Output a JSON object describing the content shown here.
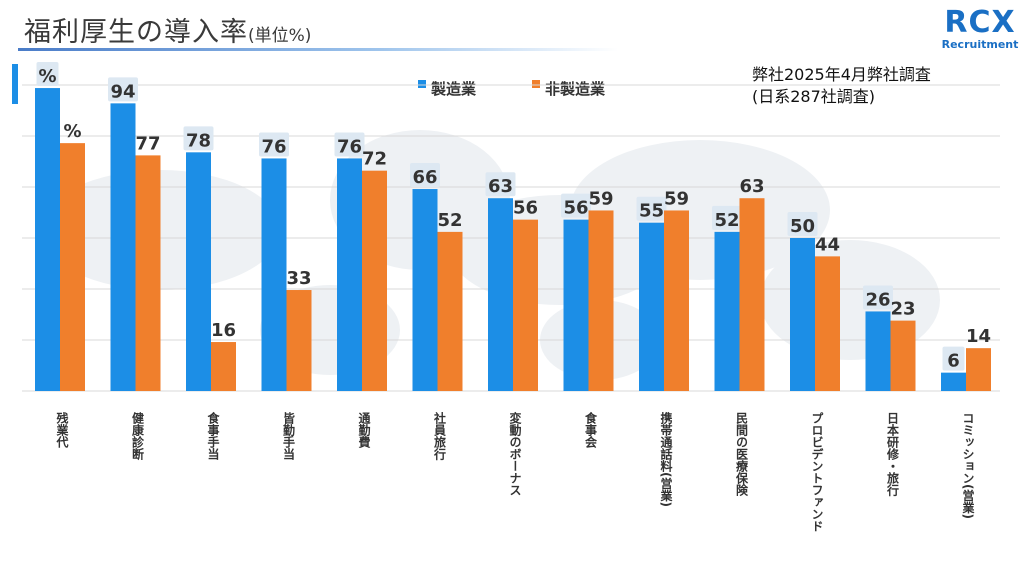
{
  "header": {
    "title": "福利厚生の導入率",
    "unit": "(単位%)"
  },
  "logo": {
    "main_prefix": "RC",
    "main_x": "X",
    "sub": "Recruitment"
  },
  "note": {
    "line1": "弊社2025年4月弊社調査",
    "line2": "(日系287社調査)"
  },
  "colors": {
    "manufacturing": "#1c8ee6",
    "non_manufacturing": "#f07f2c"
  },
  "chart_data": {
    "type": "bar",
    "categories": [
      "残業代",
      "健康診断",
      "食事手当",
      "皆勤手当",
      "通勤費",
      "社員旅行",
      "変動のボーナス",
      "食事会",
      "携帯通話料(営業)",
      "民間の医療保険",
      "プロビデントファンド",
      "日本研修・旅行",
      "コミッション(営業)"
    ],
    "series": [
      {
        "name": "製造業",
        "values": [
          99,
          94,
          78,
          76,
          76,
          66,
          63,
          56,
          55,
          52,
          50,
          26,
          6
        ],
        "labels": [
          "%",
          "94",
          "78",
          "76",
          "76",
          "66",
          "63",
          "56",
          "55",
          "52",
          "50",
          "26",
          "6"
        ]
      },
      {
        "name": "非製造業",
        "values": [
          81,
          77,
          16,
          33,
          72,
          52,
          56,
          59,
          59,
          63,
          44,
          23,
          14
        ],
        "labels": [
          "%",
          "77",
          "16",
          "33",
          "72",
          "52",
          "56",
          "59",
          "59",
          "63",
          "44",
          "23",
          "14"
        ]
      }
    ],
    "ylim": [
      0,
      100
    ],
    "grid": true,
    "legend_position": "top"
  }
}
